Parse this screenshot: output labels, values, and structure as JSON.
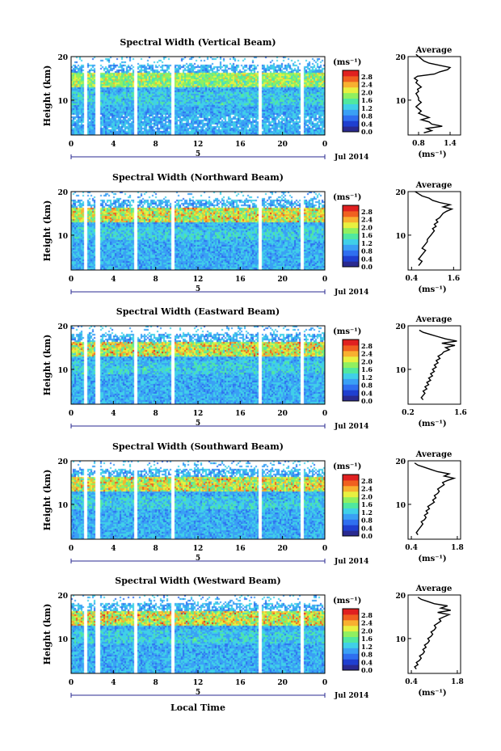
{
  "figure": {
    "xlabel": "Local Time",
    "date_label": "Jul 2014",
    "cbar_unit": "(ms⁻¹)",
    "avg_unit": "(ms⁻¹)",
    "avg_title": "Average",
    "ylabel": "Height (km)",
    "date_marker": "5"
  },
  "colorscale": [
    "#2a2a90",
    "#1f3fd0",
    "#2f6ff0",
    "#3aa0f5",
    "#40d0e8",
    "#50e8a0",
    "#90f060",
    "#e8f040",
    "#f8b030",
    "#f06020",
    "#e02020"
  ],
  "chart_data": [
    {
      "type": "heatmap",
      "title": "Spectral Width (Vertical Beam)",
      "x_ticks": [
        "0",
        "4",
        "8",
        "12",
        "16",
        "20",
        "0"
      ],
      "y_ticks": [
        "20",
        "10"
      ],
      "xlim": [
        0,
        24
      ],
      "ylim": [
        2,
        20
      ],
      "cbar_ticks": [
        "2.8",
        "2.4",
        "2.0",
        "1.6",
        "1.2",
        "0.8",
        "0.4",
        "0.0"
      ],
      "data_gaps_hours": [
        [
          1.1,
          1.5
        ],
        [
          2.2,
          2.6
        ],
        [
          5.9,
          6.2
        ],
        [
          9.4,
          9.7
        ],
        [
          17.7,
          18.0
        ],
        [
          21.6,
          21.9
        ]
      ],
      "average": {
        "xticks": [
          "0.8",
          "1.4"
        ],
        "xlim": [
          0.6,
          1.6
        ],
        "x": [
          0.9,
          1.05,
          0.95,
          1.25,
          1.05,
          1.0,
          0.85,
          1.0,
          0.9,
          0.8,
          0.85,
          0.8,
          0.75,
          0.8,
          0.85,
          0.8,
          0.8,
          0.78,
          0.75,
          0.8,
          0.78,
          0.85,
          0.8,
          0.75,
          0.78,
          0.72,
          0.78,
          1.1,
          1.2,
          1.35,
          1.4,
          1.2,
          1.0,
          0.9,
          0.85,
          0.8,
          0.75
        ],
        "heights": [
          2.5,
          3,
          3.5,
          4,
          4.5,
          5,
          5.5,
          6,
          6.5,
          7,
          7.5,
          8,
          8.5,
          9,
          9.5,
          10,
          10.5,
          11,
          11.5,
          12,
          12.5,
          13,
          13.5,
          14,
          14.5,
          15,
          15.5,
          16,
          16.5,
          17,
          17.5,
          18,
          18.5,
          19,
          19.5,
          20,
          20.5
        ]
      }
    },
    {
      "type": "heatmap",
      "title": "Spectral Width (Northward Beam)",
      "x_ticks": [
        "0",
        "4",
        "8",
        "12",
        "16",
        "20",
        "0"
      ],
      "y_ticks": [
        "20",
        "10"
      ],
      "xlim": [
        0,
        24
      ],
      "ylim": [
        2,
        20
      ],
      "cbar_ticks": [
        "2.8",
        "2.4",
        "2.0",
        "1.6",
        "1.2",
        "0.8",
        "0.4",
        "0.0"
      ],
      "data_gaps_hours": [
        [
          1.1,
          1.5
        ],
        [
          2.2,
          2.6
        ],
        [
          5.9,
          6.2
        ],
        [
          9.4,
          9.7
        ],
        [
          17.7,
          18.0
        ],
        [
          21.6,
          21.9
        ]
      ],
      "average": {
        "xticks": [
          "0.4",
          "1.6"
        ],
        "xlim": [
          0.3,
          1.8
        ],
        "x": [
          0.6,
          0.65,
          0.7,
          0.6,
          0.65,
          0.7,
          0.75,
          0.8,
          0.7,
          0.75,
          0.8,
          0.85,
          0.85,
          0.9,
          0.95,
          1.0,
          1.05,
          1.0,
          1.1,
          1.05,
          1.15,
          1.1,
          1.2,
          1.25,
          1.3,
          1.4,
          1.55,
          1.3,
          1.5,
          1.2,
          1.0,
          0.9,
          0.7,
          0.6,
          0.5
        ],
        "heights": [
          3,
          3.5,
          4,
          4.5,
          5,
          5.5,
          6,
          6.5,
          7,
          7.5,
          8,
          8.5,
          9,
          9.5,
          10,
          10.5,
          11,
          11.5,
          12,
          12.5,
          13,
          13.5,
          14,
          14.5,
          15,
          15.5,
          16,
          16.5,
          17,
          17.5,
          18,
          18.5,
          19,
          19.5,
          20
        ]
      }
    },
    {
      "type": "heatmap",
      "title": "Spectral Width (Eastward Beam)",
      "x_ticks": [
        "0",
        "4",
        "8",
        "12",
        "16",
        "20",
        "0"
      ],
      "y_ticks": [
        "20",
        "10"
      ],
      "xlim": [
        0,
        24
      ],
      "ylim": [
        2,
        20
      ],
      "cbar_ticks": [
        "2.8",
        "2.4",
        "2.0",
        "1.6",
        "1.2",
        "0.8",
        "0.4",
        "0.0"
      ],
      "data_gaps_hours": [
        [
          1.1,
          1.5
        ],
        [
          2.2,
          2.6
        ],
        [
          5.9,
          6.2
        ],
        [
          9.4,
          9.7
        ],
        [
          17.7,
          18.0
        ],
        [
          21.6,
          21.9
        ]
      ],
      "average": {
        "xticks": [
          "0.2",
          "1.6"
        ],
        "xlim": [
          0.2,
          1.6
        ],
        "x": [
          0.6,
          0.55,
          0.6,
          0.65,
          0.6,
          0.7,
          0.65,
          0.75,
          0.7,
          0.8,
          0.75,
          0.85,
          0.8,
          0.9,
          0.85,
          0.95,
          0.9,
          1.0,
          0.95,
          1.05,
          1.0,
          1.1,
          1.15,
          1.3,
          1.2,
          1.45,
          1.1,
          1.5,
          1.2,
          1.0,
          0.8,
          0.6,
          0.5
        ],
        "heights": [
          3,
          3.5,
          4,
          4.5,
          5,
          5.5,
          6,
          6.5,
          7,
          7.5,
          8,
          8.5,
          9,
          9.5,
          10,
          10.5,
          11,
          11.5,
          12,
          12.5,
          13,
          13.5,
          14,
          14.5,
          15,
          15.5,
          16,
          16.5,
          17,
          17.5,
          18,
          18.5,
          19
        ]
      }
    },
    {
      "type": "heatmap",
      "title": "Spectral Width (Southward Beam)",
      "x_ticks": [
        "0",
        "4",
        "8",
        "12",
        "16",
        "20",
        "0"
      ],
      "y_ticks": [
        "20",
        "10"
      ],
      "xlim": [
        0,
        24
      ],
      "ylim": [
        2,
        20
      ],
      "cbar_ticks": [
        "2.8",
        "2.4",
        "2.0",
        "1.6",
        "1.2",
        "0.8",
        "0.4",
        "0.0"
      ],
      "data_gaps_hours": [
        [
          1.1,
          1.5
        ],
        [
          2.2,
          2.6
        ],
        [
          5.9,
          6.2
        ],
        [
          9.4,
          9.7
        ],
        [
          17.7,
          18.0
        ],
        [
          21.6,
          21.9
        ]
      ],
      "average": {
        "xticks": [
          "0.4",
          "1.8"
        ],
        "xlim": [
          0.3,
          1.9
        ],
        "x": [
          0.6,
          0.55,
          0.6,
          0.65,
          0.7,
          0.75,
          0.7,
          0.8,
          0.85,
          0.8,
          0.9,
          0.85,
          0.95,
          0.9,
          1.0,
          1.1,
          1.05,
          1.15,
          1.1,
          1.2,
          1.25,
          1.2,
          1.3,
          1.4,
          1.35,
          1.5,
          1.7,
          1.4,
          1.55,
          1.2,
          1.0,
          0.8,
          0.6,
          0.5
        ],
        "heights": [
          3,
          3.5,
          4,
          4.5,
          5,
          5.5,
          6,
          6.5,
          7,
          7.5,
          8,
          8.5,
          9,
          9.5,
          10,
          10.5,
          11,
          11.5,
          12,
          12.5,
          13,
          13.5,
          14,
          14.5,
          15,
          15.5,
          16,
          16.5,
          17,
          17.5,
          18,
          18.5,
          19,
          19.5
        ]
      }
    },
    {
      "type": "heatmap",
      "title": "Spectral Width (Westward Beam)",
      "x_ticks": [
        "0",
        "4",
        "8",
        "12",
        "16",
        "20",
        "0"
      ],
      "y_ticks": [
        "20",
        "10"
      ],
      "xlim": [
        0,
        24
      ],
      "ylim": [
        2,
        20
      ],
      "cbar_ticks": [
        "2.8",
        "2.4",
        "2.0",
        "1.6",
        "1.2",
        "0.8",
        "0.4",
        "0.0"
      ],
      "data_gaps_hours": [
        [
          1.1,
          1.5
        ],
        [
          2.2,
          2.6
        ],
        [
          5.9,
          6.2
        ],
        [
          9.4,
          9.7
        ],
        [
          17.7,
          18.0
        ],
        [
          21.6,
          21.9
        ]
      ],
      "average": {
        "xticks": [
          "0.4",
          "1.8"
        ],
        "xlim": [
          0.3,
          1.9
        ],
        "x": [
          0.55,
          0.5,
          0.6,
          0.55,
          0.65,
          0.7,
          0.65,
          0.75,
          0.8,
          0.75,
          0.85,
          0.8,
          0.9,
          0.95,
          0.9,
          1.0,
          1.05,
          1.0,
          1.1,
          1.15,
          1.1,
          1.2,
          1.3,
          1.25,
          1.4,
          1.55,
          1.2,
          1.6,
          1.3,
          1.5,
          1.1,
          0.9,
          0.7,
          0.6
        ],
        "heights": [
          3,
          3.5,
          4,
          4.5,
          5,
          5.5,
          6,
          6.5,
          7,
          7.5,
          8,
          8.5,
          9,
          9.5,
          10,
          10.5,
          11,
          11.5,
          12,
          12.5,
          13,
          13.5,
          14,
          14.5,
          15,
          15.5,
          16,
          16.5,
          17,
          17.5,
          18,
          18.5,
          19,
          19.5
        ]
      }
    }
  ]
}
